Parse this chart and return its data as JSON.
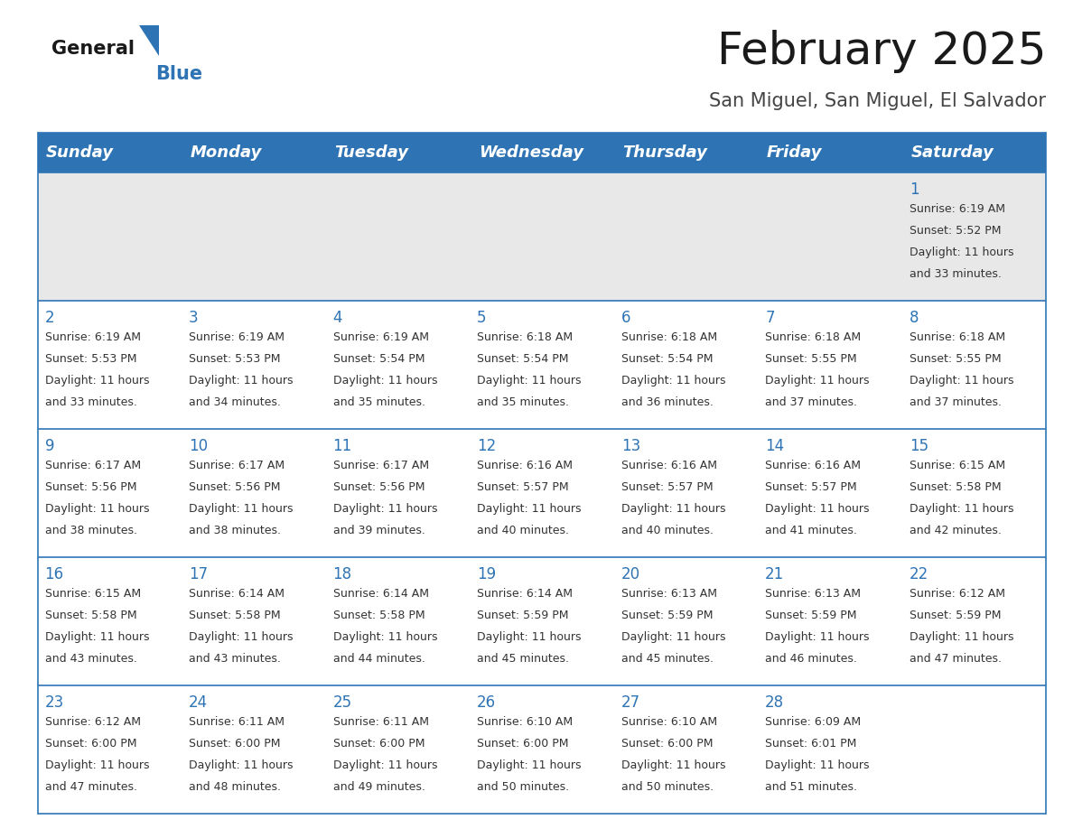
{
  "title": "February 2025",
  "subtitle": "San Miguel, San Miguel, El Salvador",
  "days_of_week": [
    "Sunday",
    "Monday",
    "Tuesday",
    "Wednesday",
    "Thursday",
    "Friday",
    "Saturday"
  ],
  "header_bg": "#2E74B5",
  "header_text": "#FFFFFF",
  "week1_bg": "#E8E8E8",
  "week_bg": "#FFFFFF",
  "day_number_color": "#2E74B5",
  "text_color": "#333333",
  "border_color": "#2E74B5",
  "calendar_data": [
    [
      null,
      null,
      null,
      null,
      null,
      null,
      {
        "day": 1,
        "sunrise": "6:19 AM",
        "sunset": "5:52 PM",
        "daylight": "11 hours and 33 minutes."
      }
    ],
    [
      {
        "day": 2,
        "sunrise": "6:19 AM",
        "sunset": "5:53 PM",
        "daylight": "11 hours and 33 minutes."
      },
      {
        "day": 3,
        "sunrise": "6:19 AM",
        "sunset": "5:53 PM",
        "daylight": "11 hours and 34 minutes."
      },
      {
        "day": 4,
        "sunrise": "6:19 AM",
        "sunset": "5:54 PM",
        "daylight": "11 hours and 35 minutes."
      },
      {
        "day": 5,
        "sunrise": "6:18 AM",
        "sunset": "5:54 PM",
        "daylight": "11 hours and 35 minutes."
      },
      {
        "day": 6,
        "sunrise": "6:18 AM",
        "sunset": "5:54 PM",
        "daylight": "11 hours and 36 minutes."
      },
      {
        "day": 7,
        "sunrise": "6:18 AM",
        "sunset": "5:55 PM",
        "daylight": "11 hours and 37 minutes."
      },
      {
        "day": 8,
        "sunrise": "6:18 AM",
        "sunset": "5:55 PM",
        "daylight": "11 hours and 37 minutes."
      }
    ],
    [
      {
        "day": 9,
        "sunrise": "6:17 AM",
        "sunset": "5:56 PM",
        "daylight": "11 hours and 38 minutes."
      },
      {
        "day": 10,
        "sunrise": "6:17 AM",
        "sunset": "5:56 PM",
        "daylight": "11 hours and 38 minutes."
      },
      {
        "day": 11,
        "sunrise": "6:17 AM",
        "sunset": "5:56 PM",
        "daylight": "11 hours and 39 minutes."
      },
      {
        "day": 12,
        "sunrise": "6:16 AM",
        "sunset": "5:57 PM",
        "daylight": "11 hours and 40 minutes."
      },
      {
        "day": 13,
        "sunrise": "6:16 AM",
        "sunset": "5:57 PM",
        "daylight": "11 hours and 40 minutes."
      },
      {
        "day": 14,
        "sunrise": "6:16 AM",
        "sunset": "5:57 PM",
        "daylight": "11 hours and 41 minutes."
      },
      {
        "day": 15,
        "sunrise": "6:15 AM",
        "sunset": "5:58 PM",
        "daylight": "11 hours and 42 minutes."
      }
    ],
    [
      {
        "day": 16,
        "sunrise": "6:15 AM",
        "sunset": "5:58 PM",
        "daylight": "11 hours and 43 minutes."
      },
      {
        "day": 17,
        "sunrise": "6:14 AM",
        "sunset": "5:58 PM",
        "daylight": "11 hours and 43 minutes."
      },
      {
        "day": 18,
        "sunrise": "6:14 AM",
        "sunset": "5:58 PM",
        "daylight": "11 hours and 44 minutes."
      },
      {
        "day": 19,
        "sunrise": "6:14 AM",
        "sunset": "5:59 PM",
        "daylight": "11 hours and 45 minutes."
      },
      {
        "day": 20,
        "sunrise": "6:13 AM",
        "sunset": "5:59 PM",
        "daylight": "11 hours and 45 minutes."
      },
      {
        "day": 21,
        "sunrise": "6:13 AM",
        "sunset": "5:59 PM",
        "daylight": "11 hours and 46 minutes."
      },
      {
        "day": 22,
        "sunrise": "6:12 AM",
        "sunset": "5:59 PM",
        "daylight": "11 hours and 47 minutes."
      }
    ],
    [
      {
        "day": 23,
        "sunrise": "6:12 AM",
        "sunset": "6:00 PM",
        "daylight": "11 hours and 47 minutes."
      },
      {
        "day": 24,
        "sunrise": "6:11 AM",
        "sunset": "6:00 PM",
        "daylight": "11 hours and 48 minutes."
      },
      {
        "day": 25,
        "sunrise": "6:11 AM",
        "sunset": "6:00 PM",
        "daylight": "11 hours and 49 minutes."
      },
      {
        "day": 26,
        "sunrise": "6:10 AM",
        "sunset": "6:00 PM",
        "daylight": "11 hours and 50 minutes."
      },
      {
        "day": 27,
        "sunrise": "6:10 AM",
        "sunset": "6:00 PM",
        "daylight": "11 hours and 50 minutes."
      },
      {
        "day": 28,
        "sunrise": "6:09 AM",
        "sunset": "6:01 PM",
        "daylight": "11 hours and 51 minutes."
      },
      null
    ]
  ],
  "logo_text_general": "General",
  "logo_text_blue": "Blue",
  "title_fontsize": 36,
  "subtitle_fontsize": 15,
  "day_number_fontsize": 12,
  "cell_text_fontsize": 9,
  "col_header_fontsize": 13
}
